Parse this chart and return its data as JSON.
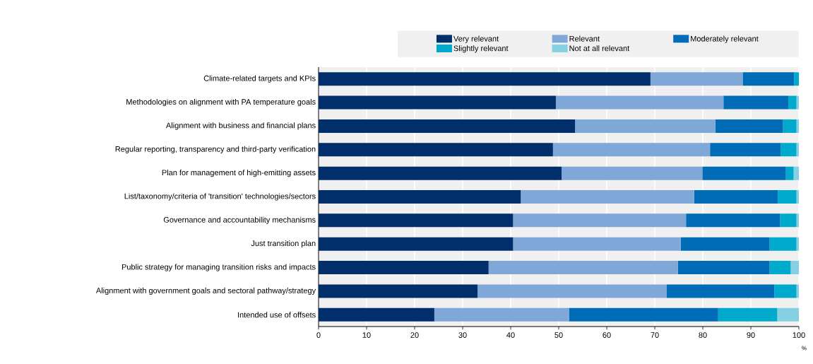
{
  "chart_data": {
    "type": "bar",
    "orientation": "horizontal",
    "stacked": true,
    "xlabel": "%",
    "categories": [
      "Climate-related targets and KPIs",
      "Methodologies on alignment with PA temperature goals",
      "Alignment with business and financial plans",
      "Regular reporting, transparency and third-party verification",
      "Plan for management of high-emitting assets",
      "List/taxonomy/criteria of 'transition' technologies/sectors",
      "Governance and accountability mechanisms",
      "Just transition plan",
      "Public strategy for managing transition risks and impacts",
      "Alignment with government goals and sectoral pathway/strategy",
      "Intended use of offsets"
    ],
    "series": [
      {
        "name": "Very relevant",
        "color": "#002f6c",
        "values": [
          69.1,
          49.4,
          53.4,
          48.8,
          50.6,
          42.1,
          40.5,
          40.5,
          35.4,
          33.1,
          24.1
        ]
      },
      {
        "name": "Relevant",
        "color": "#7fa8d9",
        "values": [
          19.2,
          34.9,
          29.2,
          32.7,
          29.3,
          36.1,
          36.0,
          34.9,
          39.4,
          39.4,
          28.1
        ]
      },
      {
        "name": "Moderately relevant",
        "color": "#006bb6",
        "values": [
          10.7,
          13.5,
          14.1,
          14.7,
          17.4,
          17.4,
          19.6,
          18.5,
          19.1,
          22.4,
          31.0
        ]
      },
      {
        "name": "Slightly relevant",
        "color": "#00aacc",
        "values": [
          1.0,
          1.7,
          2.8,
          3.3,
          1.6,
          3.9,
          3.4,
          5.6,
          4.4,
          4.6,
          12.3
        ]
      },
      {
        "name": "Not at all relevant",
        "color": "#86d0e3",
        "values": [
          0,
          0.5,
          0.5,
          0.5,
          1.1,
          0.5,
          0.5,
          0.5,
          1.7,
          0.5,
          4.5
        ]
      }
    ],
    "xlim": [
      0,
      100
    ],
    "xticks": [
      0,
      10,
      20,
      30,
      40,
      50,
      60,
      70,
      80,
      90,
      100
    ],
    "grid": "x",
    "legend": "top"
  }
}
